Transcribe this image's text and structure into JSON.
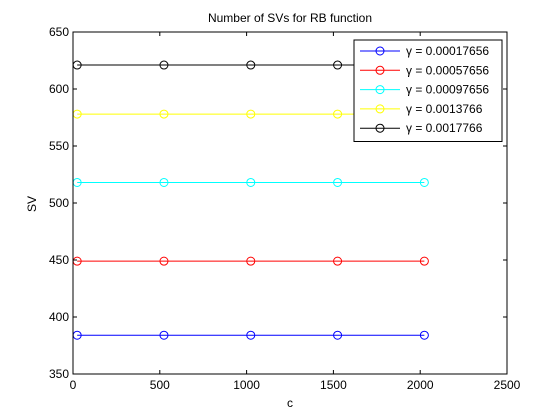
{
  "chart_data": {
    "type": "line",
    "title": "Number of SVs for RB function",
    "xlabel": "c",
    "ylabel": "SV",
    "xlim": [
      0,
      2500
    ],
    "ylim": [
      350,
      650
    ],
    "xticks": [
      0,
      500,
      1000,
      1500,
      2000,
      2500
    ],
    "yticks": [
      350,
      400,
      450,
      500,
      550,
      600,
      650
    ],
    "xtick_labels": [
      "0",
      "500",
      "1000",
      "1500",
      "2000",
      "2500"
    ],
    "ytick_labels": [
      "350",
      "400",
      "450",
      "500",
      "550",
      "600",
      "650"
    ],
    "grid": false,
    "legend_placement": "top-right",
    "marker": "circle",
    "x": [
      24,
      524,
      1024,
      1524,
      2024
    ],
    "series": [
      {
        "name": "γ = 0.00017656",
        "color": "#0000ff",
        "values": [
          384,
          384,
          384,
          384,
          384
        ]
      },
      {
        "name": "γ = 0.00057656",
        "color": "#ff0000",
        "values": [
          449,
          449,
          449,
          449,
          449
        ]
      },
      {
        "name": "γ = 0.00097656",
        "color": "#00ffff",
        "values": [
          518,
          518,
          518,
          518,
          518
        ]
      },
      {
        "name": "γ = 0.0013766",
        "color": "#ffff00",
        "values": [
          578,
          578,
          578,
          578,
          578
        ]
      },
      {
        "name": "γ = 0.0017766",
        "color": "#000000",
        "values": [
          621,
          621,
          621,
          621,
          621
        ]
      }
    ]
  }
}
